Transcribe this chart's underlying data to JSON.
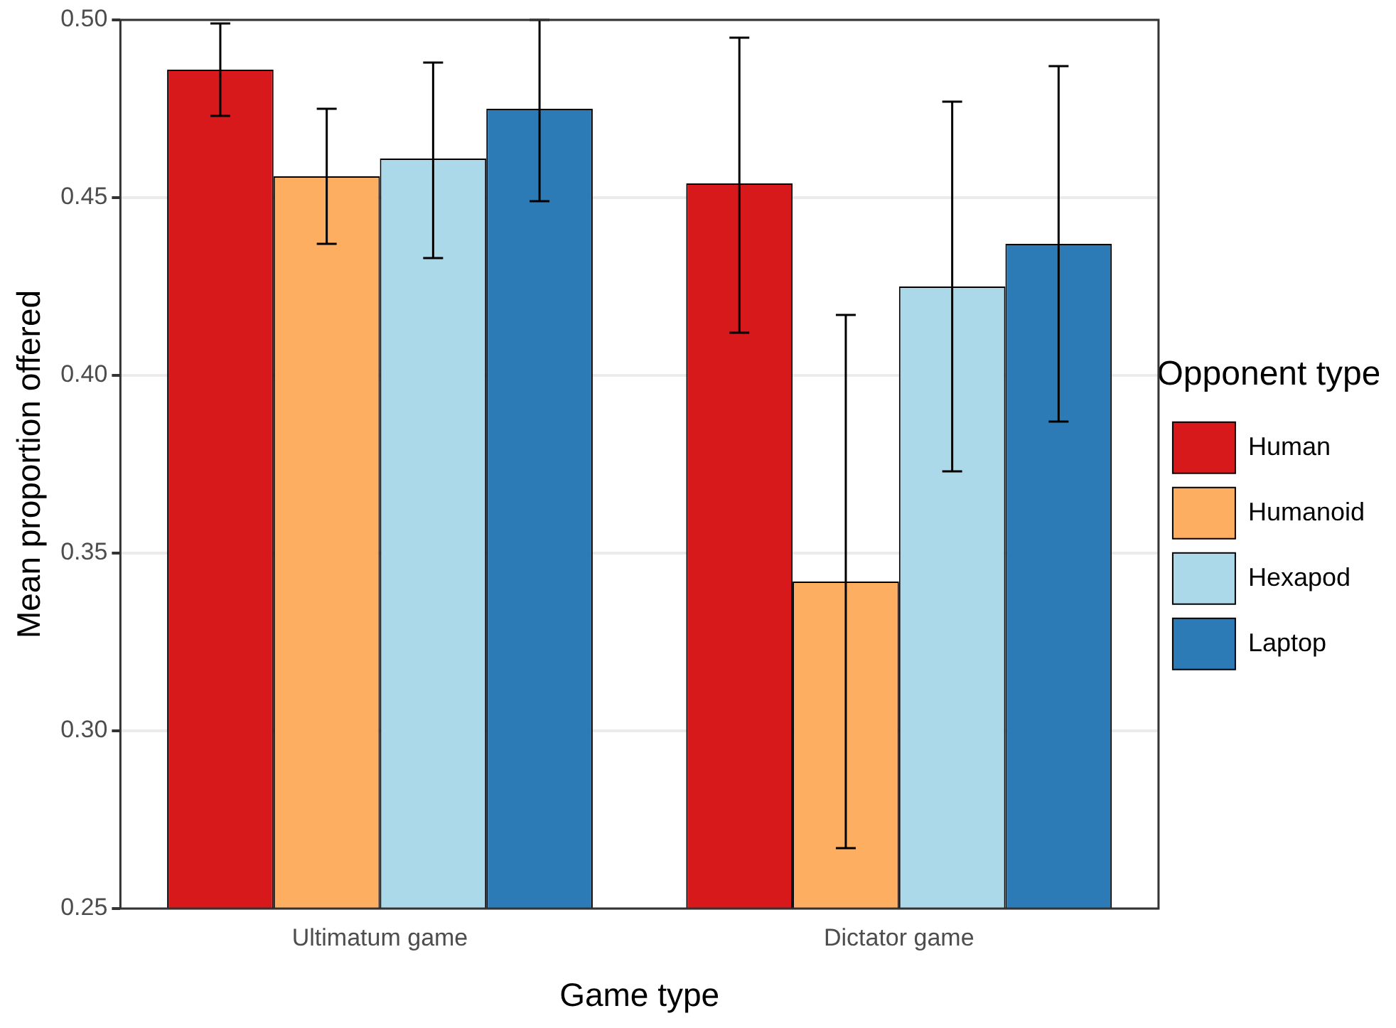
{
  "chart_data": {
    "type": "bar",
    "xlabel": "Game type",
    "ylabel": "Mean proportion offered",
    "legend_title": "Opponent type",
    "categories": [
      "Ultimatum game",
      "Dictator game"
    ],
    "series": [
      {
        "name": "Human",
        "color": "#d7191c",
        "values": [
          0.486,
          0.454
        ],
        "errors": [
          [
            0.473,
            0.499
          ],
          [
            0.412,
            0.495
          ]
        ]
      },
      {
        "name": "Humanoid",
        "color": "#fdae61",
        "values": [
          0.456,
          0.342
        ],
        "errors": [
          [
            0.437,
            0.475
          ],
          [
            0.267,
            0.417
          ]
        ]
      },
      {
        "name": "Hexapod",
        "color": "#abd9e9",
        "values": [
          0.461,
          0.425
        ],
        "errors": [
          [
            0.433,
            0.488
          ],
          [
            0.373,
            0.477
          ]
        ]
      },
      {
        "name": "Laptop",
        "color": "#2c7bb6",
        "values": [
          0.475,
          0.437
        ],
        "errors": [
          [
            0.449,
            0.5
          ],
          [
            0.387,
            0.487
          ]
        ]
      }
    ],
    "ylim": [
      0.25,
      0.5
    ],
    "yticks": [
      {
        "value": 0.25,
        "label": "0.25"
      },
      {
        "value": 0.3,
        "label": "0.30"
      },
      {
        "value": 0.35,
        "label": "0.35"
      },
      {
        "value": 0.4,
        "label": "0.40"
      },
      {
        "value": 0.45,
        "label": "0.45"
      },
      {
        "value": 0.5,
        "label": "0.50"
      }
    ],
    "grid": "y",
    "legend": "right"
  }
}
